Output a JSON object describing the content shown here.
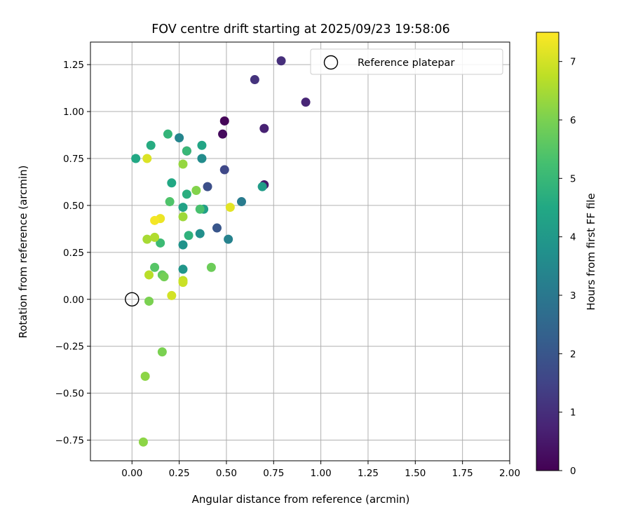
{
  "chart_data": {
    "type": "scatter",
    "title": "FOV centre drift starting at 2025/09/23 19:58:06",
    "xlabel": "Angular distance from reference (arcmin)",
    "ylabel": "Rotation from reference (arcmin)",
    "xlim": [
      -0.22,
      2.0
    ],
    "ylim": [
      -0.86,
      1.37
    ],
    "x_ticks": [
      0.0,
      0.25,
      0.5,
      0.75,
      1.0,
      1.25,
      1.5,
      1.75,
      2.0
    ],
    "x_tick_labels": [
      "0.00",
      "0.25",
      "0.50",
      "0.75",
      "1.00",
      "1.25",
      "1.50",
      "1.75",
      "2.00"
    ],
    "y_ticks": [
      -0.75,
      -0.5,
      -0.25,
      0.0,
      0.25,
      0.5,
      0.75,
      1.0,
      1.25
    ],
    "y_tick_labels": [
      "−0.75",
      "−0.50",
      "−0.25",
      "0.00",
      "0.25",
      "0.50",
      "0.75",
      "1.00",
      "1.25"
    ],
    "grid": true,
    "legend": {
      "label": "Reference platepar",
      "position": "top-right"
    },
    "reference_point": {
      "x": 0.0,
      "y": 0.0
    },
    "colorbar": {
      "label": "Hours from first FF file",
      "colormap": "viridis",
      "range": [
        0,
        7.5
      ],
      "ticks": [
        0,
        1,
        2,
        3,
        4,
        5,
        6,
        7
      ],
      "tick_labels": [
        "0",
        "1",
        "2",
        "3",
        "4",
        "5",
        "6",
        "7"
      ]
    },
    "points": [
      {
        "x": 0.49,
        "y": 0.95,
        "hours": 0.1
      },
      {
        "x": 0.48,
        "y": 0.88,
        "hours": 0.2
      },
      {
        "x": 0.29,
        "y": 0.79,
        "hours": 0.3
      },
      {
        "x": 0.7,
        "y": 0.61,
        "hours": 0.5
      },
      {
        "x": 0.7,
        "y": 0.91,
        "hours": 0.7
      },
      {
        "x": 0.92,
        "y": 1.05,
        "hours": 0.8
      },
      {
        "x": 0.79,
        "y": 1.27,
        "hours": 1.0
      },
      {
        "x": 0.65,
        "y": 1.17,
        "hours": 1.1
      },
      {
        "x": 0.49,
        "y": 0.69,
        "hours": 1.6
      },
      {
        "x": 0.4,
        "y": 0.6,
        "hours": 1.8
      },
      {
        "x": 0.45,
        "y": 0.38,
        "hours": 2.0
      },
      {
        "x": 0.58,
        "y": 0.52,
        "hours": 3.1
      },
      {
        "x": 0.51,
        "y": 0.32,
        "hours": 3.3
      },
      {
        "x": 0.25,
        "y": 0.86,
        "hours": 3.4
      },
      {
        "x": 0.37,
        "y": 0.75,
        "hours": 3.6
      },
      {
        "x": 0.36,
        "y": 0.35,
        "hours": 3.7
      },
      {
        "x": 0.27,
        "y": 0.29,
        "hours": 3.8
      },
      {
        "x": 0.27,
        "y": 0.16,
        "hours": 3.9
      },
      {
        "x": 0.69,
        "y": 0.6,
        "hours": 4.1
      },
      {
        "x": 0.38,
        "y": 0.48,
        "hours": 4.2
      },
      {
        "x": 0.27,
        "y": 0.49,
        "hours": 4.3
      },
      {
        "x": 0.37,
        "y": 0.82,
        "hours": 4.4
      },
      {
        "x": 0.21,
        "y": 0.62,
        "hours": 4.5
      },
      {
        "x": 0.02,
        "y": 0.75,
        "hours": 4.5
      },
      {
        "x": 0.1,
        "y": 0.82,
        "hours": 4.6
      },
      {
        "x": 0.29,
        "y": 0.56,
        "hours": 4.7
      },
      {
        "x": 0.3,
        "y": 0.34,
        "hours": 4.8
      },
      {
        "x": 0.19,
        "y": 0.88,
        "hours": 4.9
      },
      {
        "x": 0.29,
        "y": 0.79,
        "hours": 5.0
      },
      {
        "x": 0.15,
        "y": 0.3,
        "hours": 5.1
      },
      {
        "x": 0.36,
        "y": 0.48,
        "hours": 5.3
      },
      {
        "x": 0.2,
        "y": 0.52,
        "hours": 5.4
      },
      {
        "x": 0.12,
        "y": 0.17,
        "hours": 5.5
      },
      {
        "x": 0.16,
        "y": 0.13,
        "hours": 5.7
      },
      {
        "x": 0.42,
        "y": 0.17,
        "hours": 5.8
      },
      {
        "x": 0.17,
        "y": 0.12,
        "hours": 5.9
      },
      {
        "x": 0.09,
        "y": -0.01,
        "hours": 6.0
      },
      {
        "x": 0.16,
        "y": -0.28,
        "hours": 6.0
      },
      {
        "x": 0.34,
        "y": 0.58,
        "hours": 6.1
      },
      {
        "x": 0.07,
        "y": -0.41,
        "hours": 6.2
      },
      {
        "x": 0.06,
        "y": -0.76,
        "hours": 6.2
      },
      {
        "x": 0.27,
        "y": 0.72,
        "hours": 6.3
      },
      {
        "x": 0.27,
        "y": 0.44,
        "hours": 6.4
      },
      {
        "x": 0.08,
        "y": 0.32,
        "hours": 6.5
      },
      {
        "x": 0.12,
        "y": 0.33,
        "hours": 6.6
      },
      {
        "x": 0.09,
        "y": 0.13,
        "hours": 6.7
      },
      {
        "x": 0.27,
        "y": 0.1,
        "hours": 6.8
      },
      {
        "x": 0.27,
        "y": 0.09,
        "hours": 6.9
      },
      {
        "x": 0.21,
        "y": 0.02,
        "hours": 7.0
      },
      {
        "x": 0.08,
        "y": 0.75,
        "hours": 7.1
      },
      {
        "x": 0.52,
        "y": 0.49,
        "hours": 7.2
      },
      {
        "x": 0.15,
        "y": 0.43,
        "hours": 7.3
      },
      {
        "x": 0.12,
        "y": 0.42,
        "hours": 7.4
      }
    ]
  }
}
